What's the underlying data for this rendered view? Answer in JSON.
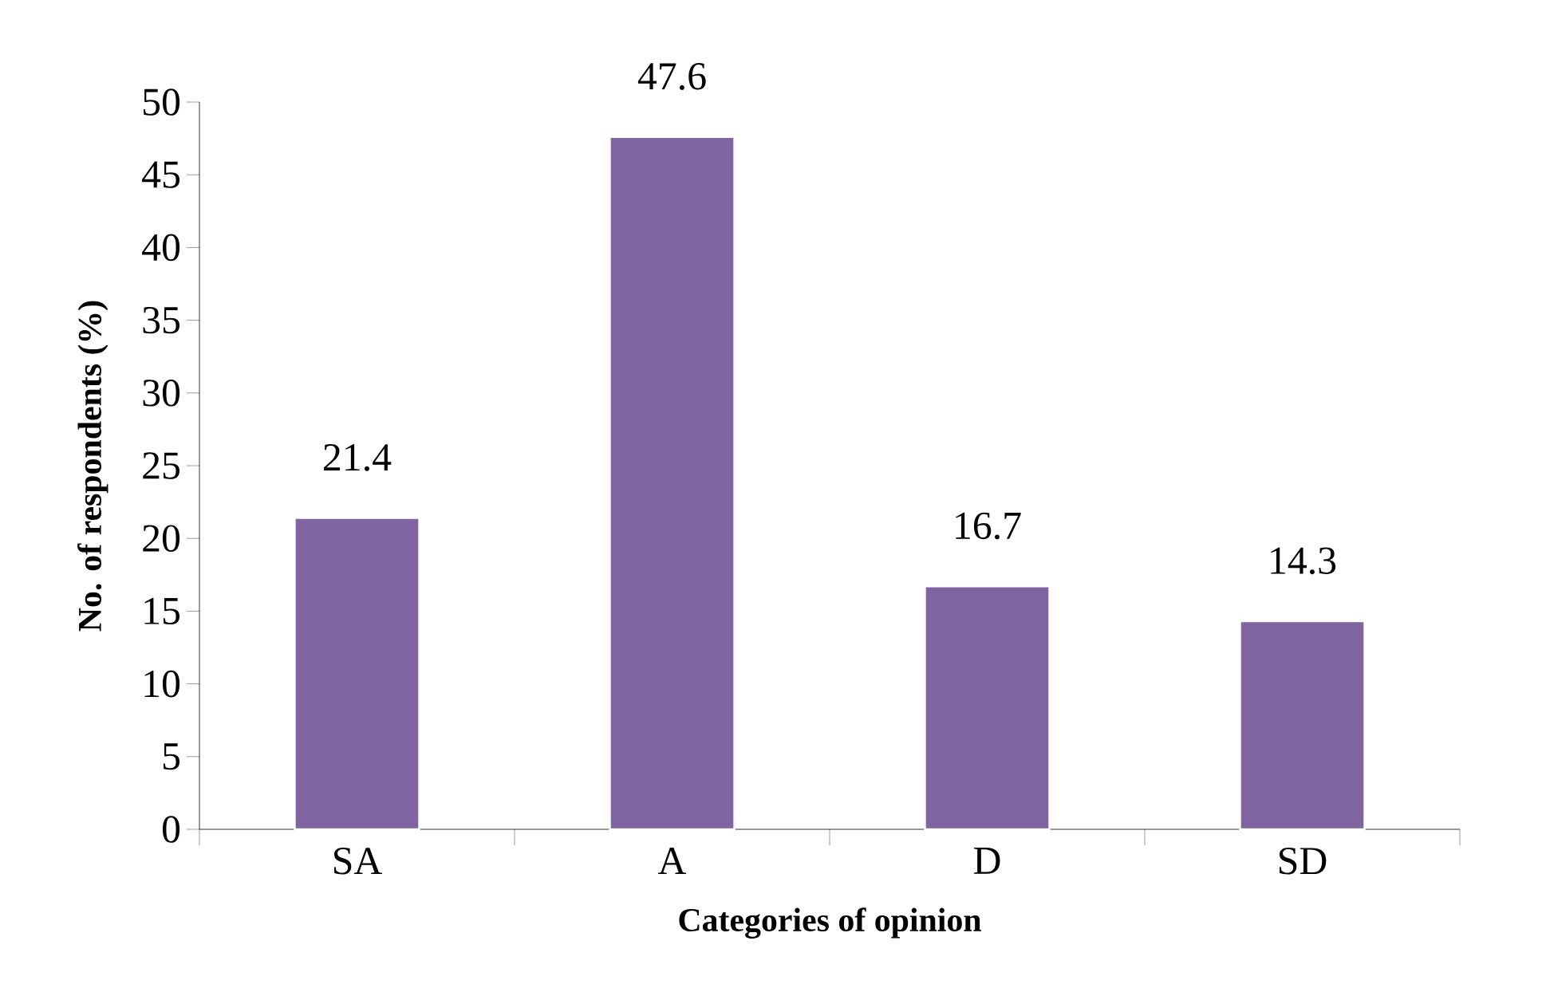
{
  "chart_data": {
    "type": "bar",
    "xlabel": "Categories of opinion",
    "ylabel": "No. of respondents (%)",
    "categories": [
      "SA",
      "A",
      "D",
      "SD"
    ],
    "values": [
      21.4,
      47.6,
      16.7,
      14.3
    ],
    "color": "#8064a2",
    "ylim": [
      0,
      50
    ],
    "yticks": [
      0,
      5,
      10,
      15,
      20,
      25,
      30,
      35,
      40,
      45,
      50
    ],
    "data_labels": true,
    "grid": false
  }
}
